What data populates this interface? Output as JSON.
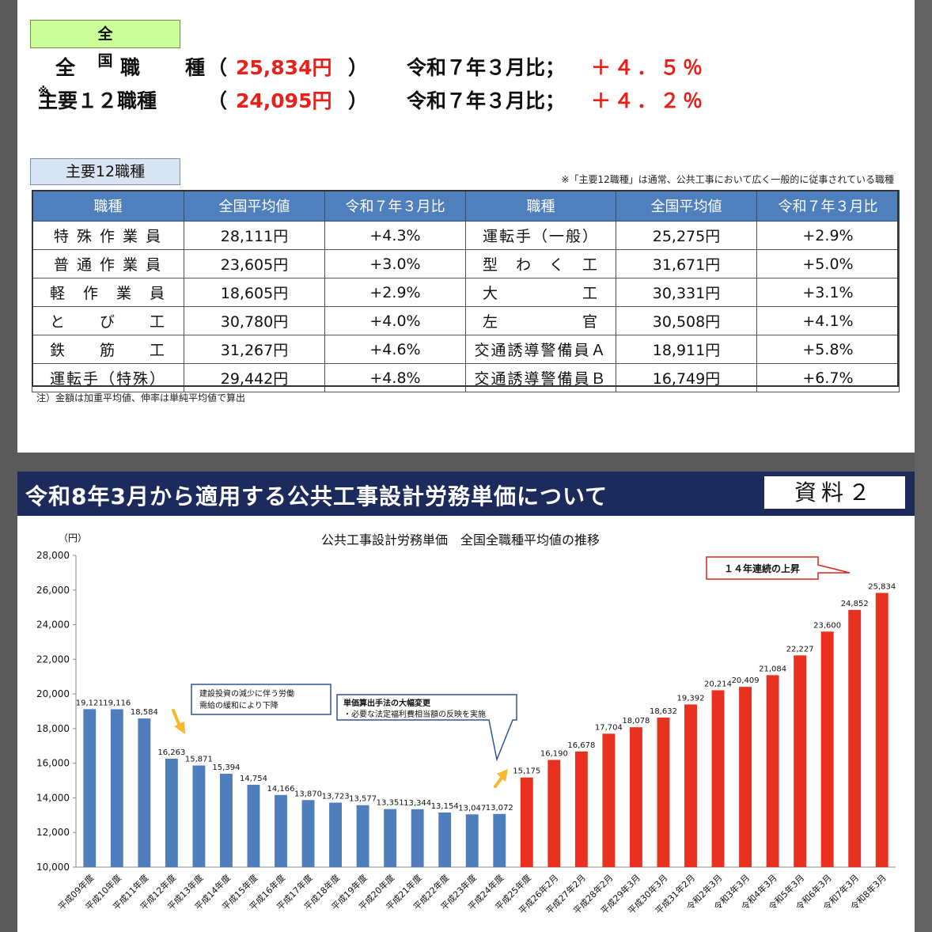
{
  "summary": {
    "region": "全　　国",
    "all_label": "全　職　種",
    "all_value": "25,834円",
    "all_compare": "令和７年３月比；",
    "all_rate": "＋４．５％",
    "main_label": "主要１２職種",
    "main_mark": "※",
    "main_value": "24,095円",
    "main_compare": "令和７年３月比；",
    "main_rate": "＋４．２％",
    "paren_open": "（",
    "paren_close": "）"
  },
  "table": {
    "tag": "主要12職種",
    "note": "※「主要12職種」は通常、公共工事において広く一般的に従事されている職種",
    "headers": [
      "職種",
      "全国平均値",
      "令和７年３月比",
      "職種",
      "全国平均値",
      "令和７年３月比"
    ],
    "rows": [
      [
        "特 殊 作 業 員",
        "28,111円",
        "+4.3%",
        "運転手（一般）",
        "25,275円",
        "+2.9%"
      ],
      [
        "普 通 作 業 員",
        "23,605円",
        "+3.0%",
        "型　わ　く　工",
        "31,671円",
        "+5.0%"
      ],
      [
        "軽　作　業　員",
        "18,605円",
        "+2.9%",
        "大　　　　　工",
        "30,331円",
        "+3.1%"
      ],
      [
        "と　　び　　工",
        "30,780円",
        "+4.0%",
        "左　　　　　官",
        "30,508円",
        "+4.1%"
      ],
      [
        "鉄　　筋　　工",
        "31,267円",
        "+4.6%",
        "交通誘導警備員Ａ",
        "18,911円",
        "+5.8%"
      ],
      [
        "運転手（特殊）",
        "29,442円",
        "+4.8%",
        "交通誘導警備員Ｂ",
        "16,749円",
        "+6.7%"
      ]
    ],
    "footnote": "注）金額は加重平均値、伸率は単純平均値で算出"
  },
  "banner": {
    "title": "令和8年3月から適用する公共工事設計労務単価について",
    "badge": "資料２"
  },
  "colors": {
    "blue_bar": "#4f7ebd",
    "red_bar": "#e8311f",
    "banner": "#1c2a5c",
    "callout_arrow": "#f5b82e"
  },
  "chart_data": {
    "type": "bar",
    "title": "公共工事設計労務単価　全国全職種平均値の推移",
    "ylabel": "（円）",
    "ylim": [
      10000,
      28000
    ],
    "yticks": [
      "10,000",
      "12,000",
      "14,000",
      "16,000",
      "18,000",
      "20,000",
      "22,000",
      "24,000",
      "26,000",
      "28,000"
    ],
    "grid": false,
    "categories": [
      "平成09年度",
      "平成10年度",
      "平成11年度",
      "平成12年度",
      "平成13年度",
      "平成14年度",
      "平成15年度",
      "平成16年度",
      "平成17年度",
      "平成18年度",
      "平成19年度",
      "平成20年度",
      "平成21年度",
      "平成22年度",
      "平成23年度",
      "平成24年度",
      "平成25年度",
      "平成26年2月",
      "平成27年2月",
      "平成28年2月",
      "平成29年3月",
      "平成30年3月",
      "平成31年2月",
      "令和2年3月",
      "令和3年3月",
      "令和4年3月",
      "令和5年3月",
      "令和6年3月",
      "令和7年3月",
      "令和8年3月"
    ],
    "values": [
      19121,
      19116,
      18584,
      16263,
      15871,
      15394,
      14754,
      14166,
      13870,
      13723,
      13577,
      13351,
      13344,
      13154,
      13047,
      13072,
      15175,
      16190,
      16678,
      17704,
      18078,
      18632,
      19392,
      20214,
      20409,
      21084,
      22227,
      23600,
      24852,
      25834
    ],
    "value_labels": [
      "19,121",
      "19,116",
      "18,584",
      "16,263",
      "15,871",
      "15,394",
      "14,754",
      "14,166",
      "13,870",
      "13,723",
      "13,577",
      "13,351",
      "13,344",
      "13,154",
      "13,047",
      "13,072",
      "15,175",
      "16,190",
      "16,678",
      "17,704",
      "18,078",
      "18,632",
      "19,392",
      "20,214",
      "20,409",
      "21,084",
      "22,227",
      "23,600",
      "24,852",
      "25,834"
    ],
    "blue_count": 16,
    "annotations": [
      {
        "lines": [
          "建設投資の減少に伴う労働",
          "需給の緩和により下降"
        ]
      },
      {
        "lines": [
          "単価算出手法の大幅変更",
          "・必要な法定福利費相当額の反映を実施"
        ]
      },
      {
        "lines": [
          "１４年連続の上昇"
        ]
      }
    ]
  }
}
